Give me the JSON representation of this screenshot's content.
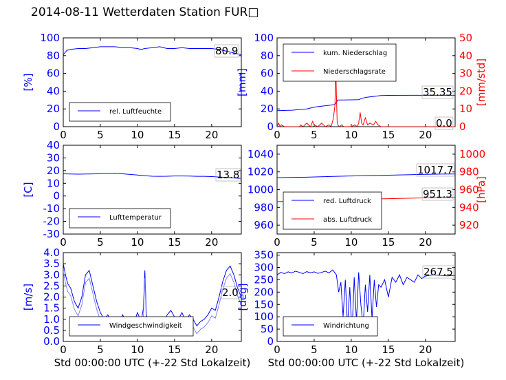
{
  "title": "2014-08-11 Wetterdaten Station FUR□",
  "colors": {
    "blue": "#0000ff",
    "red": "#ff0000",
    "light_blue": "#7f7fff"
  },
  "chart_data": [
    {
      "id": "humidity",
      "type": "line",
      "ylabel": "[%]",
      "ylim": [
        0,
        100
      ],
      "yticks": [
        0,
        20,
        40,
        60,
        80,
        100
      ],
      "xlim": [
        0,
        24
      ],
      "xticks": [
        0,
        5,
        10,
        15,
        20
      ],
      "xlabel": "",
      "legend_position": "lower-left",
      "annotation": "80.9",
      "series": [
        {
          "name": "rel. Luftfeuchte",
          "axis": "left",
          "color": "#0000ff",
          "x": [
            0,
            0.5,
            1,
            2,
            3,
            4,
            5,
            6,
            7,
            8,
            9,
            10,
            10.5,
            11,
            12,
            13,
            14,
            15,
            16,
            17,
            18,
            19,
            20,
            21,
            22,
            23,
            24
          ],
          "y": [
            81,
            86,
            87,
            88,
            88,
            89,
            90,
            90,
            90,
            89,
            89,
            88,
            87,
            88,
            89,
            90,
            88,
            88,
            89,
            88,
            88,
            88,
            88,
            87,
            85,
            83,
            81
          ]
        }
      ]
    },
    {
      "id": "precipitation",
      "type": "line",
      "ylabel": "[mm]",
      "ylim": [
        0,
        100
      ],
      "yticks": [
        0,
        20,
        40,
        60,
        80,
        100
      ],
      "y2label": "[mm/std]",
      "y2lim": [
        0,
        50
      ],
      "y2ticks": [
        0,
        10,
        20,
        30,
        40,
        50
      ],
      "xlim": [
        0,
        24
      ],
      "xticks": [
        0,
        5,
        10,
        15,
        20
      ],
      "xlabel": "",
      "legend_position": "upper-left",
      "annotations": [
        "35.35",
        "0.0"
      ],
      "series": [
        {
          "name": "kum. Niederschlag",
          "axis": "left",
          "color": "#0000ff",
          "x": [
            0,
            2,
            4,
            5,
            6,
            7,
            7.8,
            8.2,
            9,
            11,
            11.5,
            12,
            13,
            14,
            15,
            18,
            21,
            24
          ],
          "y": [
            18,
            18.5,
            20,
            22,
            23,
            24,
            25,
            30,
            30,
            30.5,
            32,
            33,
            34,
            35,
            35.3,
            35.35,
            35.35,
            35.35
          ]
        },
        {
          "name": "Niederschlagsrate",
          "axis": "right",
          "color": "#ff0000",
          "x": [
            0,
            0.2,
            0.4,
            0.6,
            1,
            2,
            3,
            3.2,
            3.5,
            4,
            4.5,
            4.8,
            5,
            5.5,
            6,
            6.5,
            7,
            7.3,
            7.6,
            7.8,
            7.9,
            8.0,
            8.1,
            8.2,
            8.4,
            8.7,
            9,
            9.5,
            10,
            10.5,
            10.8,
            11,
            11.2,
            11.4,
            11.6,
            11.9,
            12.2,
            12.5,
            13,
            13.3,
            13.6,
            14,
            24
          ],
          "y": [
            0,
            2,
            0,
            1,
            0,
            0,
            0,
            1,
            0,
            2,
            0,
            3,
            1,
            0,
            2,
            0,
            1,
            0,
            5,
            12,
            36,
            18,
            3,
            1,
            0,
            1,
            0,
            0,
            0,
            1,
            0,
            2,
            8,
            2,
            1,
            5,
            1,
            2,
            1,
            3,
            1,
            0,
            0
          ]
        }
      ]
    },
    {
      "id": "temperature",
      "type": "line",
      "ylabel": "[C]",
      "ylim": [
        -30,
        40
      ],
      "yticks": [
        -30,
        -20,
        -10,
        0,
        10,
        20,
        30,
        40
      ],
      "xlim": [
        0,
        24
      ],
      "xticks": [
        0,
        5,
        10,
        15,
        20
      ],
      "xlabel": "",
      "legend_position": "lower-left",
      "annotation": "13.8",
      "series": [
        {
          "name": "Lufttemperatur",
          "axis": "left",
          "color": "#0000ff",
          "x": [
            0,
            1,
            2,
            3,
            4,
            5,
            6,
            7,
            8,
            9,
            10,
            11,
            12,
            13,
            14,
            15,
            16,
            17,
            18,
            19,
            20,
            21,
            22,
            23,
            24
          ],
          "y": [
            17.5,
            17.3,
            17.2,
            17.3,
            17.4,
            17.6,
            17.8,
            18,
            17.5,
            17,
            16.5,
            16,
            15.6,
            15.5,
            15.6,
            15.8,
            15.8,
            15.7,
            15.5,
            15.5,
            15.3,
            15,
            14.6,
            14.2,
            13.8
          ]
        }
      ]
    },
    {
      "id": "pressure",
      "type": "line",
      "ylabel": "",
      "ylim": [
        950,
        1050
      ],
      "yticks": [
        960,
        980,
        1000,
        1020,
        1040
      ],
      "y2label": "[hPa]",
      "y2lim": [
        910,
        1010
      ],
      "y2ticks": [
        920,
        940,
        960,
        980,
        1000
      ],
      "xlim": [
        0,
        24
      ],
      "xticks": [
        0,
        5,
        10,
        15,
        20
      ],
      "xlabel": "",
      "legend_position": "lower-left",
      "annotations": [
        "1017.7",
        "951.3"
      ],
      "series": [
        {
          "name": "red. Luftdruck",
          "axis": "left",
          "color": "#0000ff",
          "x": [
            0,
            2,
            4,
            6,
            8,
            10,
            12,
            14,
            16,
            18,
            20,
            22,
            24
          ],
          "y": [
            1013.5,
            1013.7,
            1014,
            1014.6,
            1015,
            1015.4,
            1015.8,
            1016.1,
            1016.5,
            1016.8,
            1017.2,
            1017.5,
            1017.7
          ]
        },
        {
          "name": "abs. Luftdruck",
          "axis": "right",
          "color": "#ff0000",
          "x": [
            0,
            2,
            4,
            6,
            8,
            10,
            12,
            14,
            16,
            18,
            20,
            22,
            24
          ],
          "y": [
            946.5,
            946.9,
            947.3,
            947.8,
            948.2,
            948.7,
            949.1,
            949.6,
            950.0,
            950.4,
            950.8,
            951.1,
            951.3
          ]
        }
      ]
    },
    {
      "id": "wind-speed",
      "type": "line",
      "ylabel": "[m/s]",
      "ylim": [
        0,
        4
      ],
      "yticks": [
        0.0,
        0.5,
        1.0,
        1.5,
        2.0,
        2.5,
        3.0,
        3.5,
        4.0
      ],
      "xlim": [
        0,
        24
      ],
      "xticks": [
        0,
        5,
        10,
        15,
        20
      ],
      "xlabel": "Std 00:00:00 UTC (+-22 Std Lokalzeit)",
      "legend_position": "lower-left",
      "annotation": "2.0",
      "series": [
        {
          "name": "Windgeschwindigkeit",
          "axis": "left",
          "color": "#0000ff",
          "x": [
            0,
            0.3,
            0.6,
            1,
            1.5,
            2,
            2.5,
            3,
            3.5,
            4,
            4.5,
            5,
            5.5,
            6,
            6.5,
            7,
            7.5,
            8,
            8.5,
            9,
            9.5,
            10,
            10.5,
            10.8,
            11,
            11.2,
            11.5,
            12,
            12.5,
            13,
            13.5,
            14,
            14.5,
            15,
            15.5,
            16,
            16.5,
            17,
            17.5,
            18,
            18.5,
            19,
            19.5,
            20,
            20.5,
            21,
            21.5,
            22,
            22.5,
            23,
            23.5,
            24
          ],
          "y": [
            3.5,
            3.0,
            2.6,
            2.4,
            1.8,
            1.5,
            2.0,
            3.0,
            3.2,
            2.5,
            1.8,
            1.3,
            1.0,
            1.2,
            0.9,
            1.1,
            0.8,
            1.2,
            0.9,
            1.0,
            0.8,
            1.3,
            0.9,
            1.5,
            3.2,
            1.2,
            0.8,
            1.1,
            0.9,
            1.0,
            0.8,
            1.2,
            1.4,
            1.1,
            1.0,
            1.3,
            0.9,
            1.2,
            1.0,
            0.7,
            0.9,
            1.0,
            1.2,
            1.5,
            1.4,
            2.0,
            2.7,
            3.2,
            3.4,
            3.0,
            2.4,
            2.0
          ]
        }
      ]
    },
    {
      "id": "wind-direction",
      "type": "line",
      "ylabel": "[deg]",
      "ylim": [
        0,
        360
      ],
      "yticks": [
        0,
        50,
        100,
        150,
        200,
        250,
        300,
        350
      ],
      "xlim": [
        0,
        24
      ],
      "xticks": [
        0,
        5,
        10,
        15,
        20
      ],
      "xlabel": "Std 00:00:00 UTC (+-22 Std Lokalzeit)",
      "legend_position": "lower-left",
      "annotation": "267.5",
      "series": [
        {
          "name": "Windrichtung",
          "axis": "left",
          "color": "#0000ff",
          "x": [
            0,
            0.5,
            1,
            1.5,
            2,
            2.5,
            3,
            3.5,
            4,
            4.5,
            5,
            5.5,
            6,
            6.5,
            7,
            7.5,
            8,
            8.3,
            8.6,
            8.9,
            9.2,
            9.5,
            9.8,
            10.1,
            10.4,
            10.7,
            11,
            11.3,
            11.6,
            11.9,
            12.2,
            12.5,
            12.8,
            13.1,
            13.4,
            13.7,
            14,
            14.5,
            15,
            15.5,
            16,
            16.5,
            17,
            17.5,
            18,
            18.5,
            19,
            19.5,
            20,
            21,
            22,
            23,
            24
          ],
          "y": [
            270,
            280,
            275,
            282,
            278,
            285,
            280,
            275,
            283,
            278,
            282,
            276,
            280,
            285,
            278,
            290,
            270,
            200,
            240,
            100,
            250,
            60,
            220,
            30,
            260,
            80,
            280,
            150,
            60,
            230,
            120,
            270,
            90,
            250,
            140,
            230,
            220,
            250,
            180,
            260,
            240,
            270,
            230,
            260,
            250,
            240,
            270,
            255,
            265,
            270,
            268,
            266,
            267.5
          ]
        }
      ]
    }
  ]
}
